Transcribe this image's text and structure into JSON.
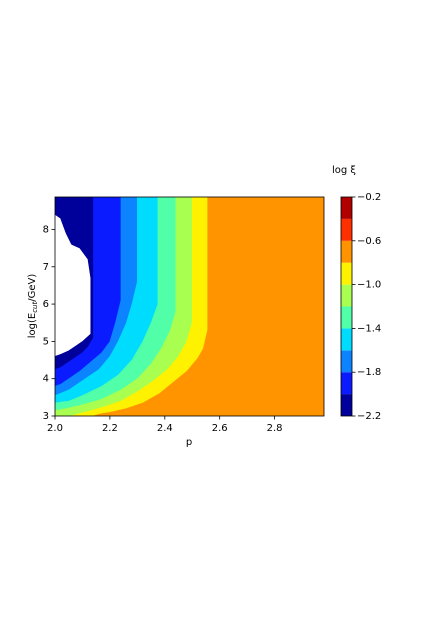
{
  "chart_data": {
    "type": "contourf",
    "xlabel": "p",
    "ylabel": "log(E_cut/GeV)",
    "colorbar_label": "log ξ",
    "xlim": [
      2.0,
      2.98
    ],
    "ylim": [
      3,
      8.87
    ],
    "xticks": [
      {
        "value": 2.0,
        "label": "2.0"
      },
      {
        "value": 2.2,
        "label": "2.2"
      },
      {
        "value": 2.4,
        "label": "2.4"
      },
      {
        "value": 2.6,
        "label": "2.6"
      },
      {
        "value": 2.8,
        "label": "2.8"
      }
    ],
    "yticks": [
      3,
      4,
      5,
      6,
      7,
      8
    ],
    "levels": [
      -2.2,
      -2.0,
      -1.8,
      -1.6,
      -1.4,
      -1.2,
      -1.0,
      -0.8,
      -0.6,
      -0.4,
      -0.2
    ],
    "colors": [
      "#00009a",
      "#0a1cff",
      "#0c84ff",
      "#00dcfe",
      "#50ffa8",
      "#a8ff50",
      "#fff200",
      "#ff9400",
      "#ff3000",
      "#b00000"
    ],
    "colorbar_ticks": [
      {
        "value": -2.2,
        "label": "−2.2"
      },
      {
        "value": -1.8,
        "label": "−1.8"
      },
      {
        "value": -1.4,
        "label": "−1.4"
      },
      {
        "value": -1.0,
        "label": "−1.0"
      },
      {
        "value": -0.6,
        "label": "−0.6"
      },
      {
        "value": -0.2,
        "label": "−0.2"
      }
    ],
    "contours": [
      {
        "x": [
          2.0,
          2.02,
          2.04,
          2.06,
          2.09,
          2.12,
          2.13,
          2.13,
          2.1,
          2.08,
          2.05,
          2.02,
          2.0
        ],
        "y": [
          8.4,
          8.3,
          7.9,
          7.6,
          7.5,
          7.2,
          6.7,
          5.2,
          5.0,
          4.9,
          4.75,
          4.65,
          4.6
        ]
      },
      {
        "x": [
          2.14,
          2.14,
          2.12,
          2.1,
          2.07,
          2.04,
          2.02,
          2.0
        ],
        "y": [
          8.87,
          5.1,
          4.85,
          4.7,
          4.55,
          4.4,
          4.3,
          4.25
        ]
      },
      {
        "x": [
          2.24,
          2.24,
          2.22,
          2.2,
          2.17,
          2.13,
          2.09,
          2.05,
          2.02,
          2.0
        ],
        "y": [
          8.87,
          6.1,
          5.5,
          5.0,
          4.7,
          4.45,
          4.2,
          4.0,
          3.85,
          3.8
        ]
      },
      {
        "x": [
          2.3,
          2.3,
          2.28,
          2.26,
          2.23,
          2.2,
          2.16,
          2.1,
          2.05,
          2.0
        ],
        "y": [
          8.87,
          6.6,
          6.0,
          5.5,
          5.0,
          4.6,
          4.25,
          3.95,
          3.7,
          3.55
        ]
      },
      {
        "x": [
          2.375,
          2.375,
          2.35,
          2.32,
          2.28,
          2.23,
          2.17,
          2.1,
          2.05,
          2.0
        ],
        "y": [
          8.87,
          6.0,
          5.5,
          5.0,
          4.5,
          4.1,
          3.8,
          3.55,
          3.4,
          3.35
        ]
      },
      {
        "x": [
          2.44,
          2.44,
          2.42,
          2.39,
          2.35,
          2.3,
          2.24,
          2.17,
          2.1,
          2.04,
          2.0
        ],
        "y": [
          8.87,
          5.8,
          5.3,
          4.85,
          4.4,
          4.0,
          3.7,
          3.45,
          3.3,
          3.2,
          3.15
        ]
      },
      {
        "x": [
          2.5,
          2.5,
          2.48,
          2.45,
          2.41,
          2.36,
          2.3,
          2.24,
          2.18,
          2.12,
          2.08,
          2.06
        ],
        "y": [
          8.87,
          5.5,
          5.0,
          4.6,
          4.25,
          3.95,
          3.65,
          3.4,
          3.25,
          3.12,
          3.05,
          3.0
        ]
      },
      {
        "x": [
          2.556,
          2.556,
          2.54,
          2.52,
          2.48,
          2.43,
          2.38,
          2.32,
          2.26,
          2.2,
          2.16,
          2.14
        ],
        "y": [
          8.87,
          5.3,
          4.8,
          4.55,
          4.2,
          3.9,
          3.6,
          3.35,
          3.2,
          3.1,
          3.05,
          3.0
        ]
      }
    ]
  }
}
